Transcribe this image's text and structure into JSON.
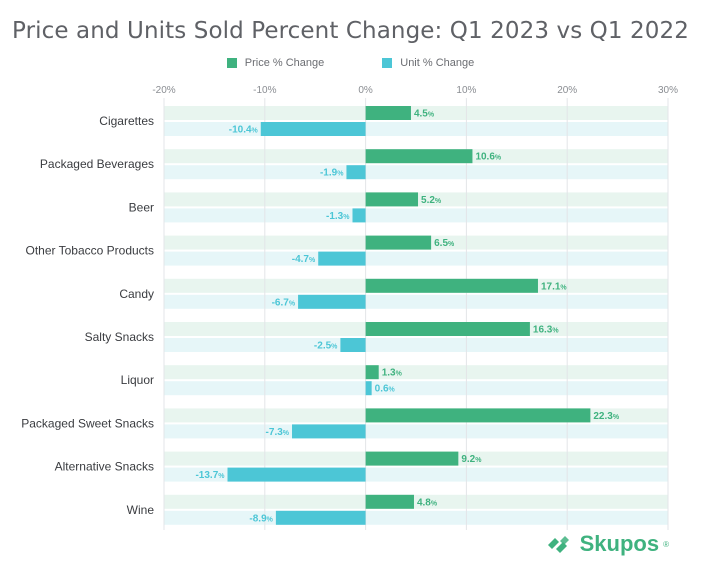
{
  "title": "Price and Units Sold Percent Change: Q1 2023 vs Q1 2022",
  "colors": {
    "price": "#3fb27f",
    "unit": "#4cc6d6",
    "price_band": "#e8f5ef",
    "unit_band": "#e6f6f8",
    "grid": "#e3e5e8",
    "label": "#3a3c40",
    "tick": "#8a8d92"
  },
  "brand": {
    "name": "Skupos",
    "mark": "®"
  },
  "chart_data": {
    "type": "bar",
    "orientation": "horizontal",
    "categories": [
      "Cigarettes",
      "Packaged Beverages",
      "Beer",
      "Other Tobacco Products",
      "Candy",
      "Salty Snacks",
      "Liquor",
      "Packaged Sweet Snacks",
      "Alternative Snacks",
      "Wine"
    ],
    "series": [
      {
        "name": "Price % Change",
        "values": [
          4.5,
          10.6,
          5.2,
          6.5,
          17.1,
          16.3,
          1.3,
          22.3,
          9.2,
          4.8
        ]
      },
      {
        "name": "Unit % Change",
        "values": [
          -10.4,
          -1.9,
          -1.3,
          -4.7,
          -6.7,
          -2.5,
          0.6,
          -7.3,
          -13.7,
          -8.9
        ]
      }
    ],
    "xlim": [
      -20,
      30
    ],
    "xticks": [
      -20,
      -10,
      0,
      10,
      20,
      30
    ],
    "tick_suffix": "%",
    "value_suffix": "%",
    "grid": true,
    "legend": "top-center"
  }
}
